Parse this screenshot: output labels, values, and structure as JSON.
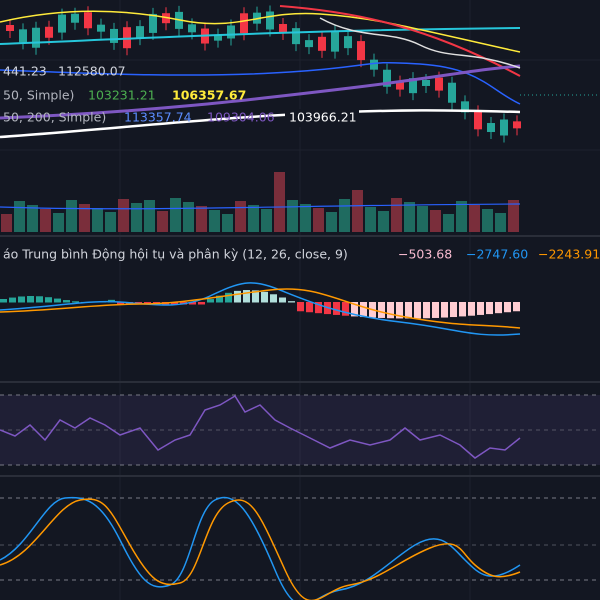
{
  "legend": {
    "row1": [
      "441.23",
      "112580.07"
    ],
    "row2": [
      "50, Simple)",
      "103231.21",
      "106357.67"
    ],
    "row3": [
      "50, 200, Simple)",
      "113357.74",
      "109304.06",
      "103966.21"
    ]
  },
  "macd": {
    "label": "áo Trung bình Động hội tụ và phân kỳ (12, 26, close, 9)",
    "values": [
      "−503.68",
      "−2747.60",
      "−2243.91"
    ]
  }
}
